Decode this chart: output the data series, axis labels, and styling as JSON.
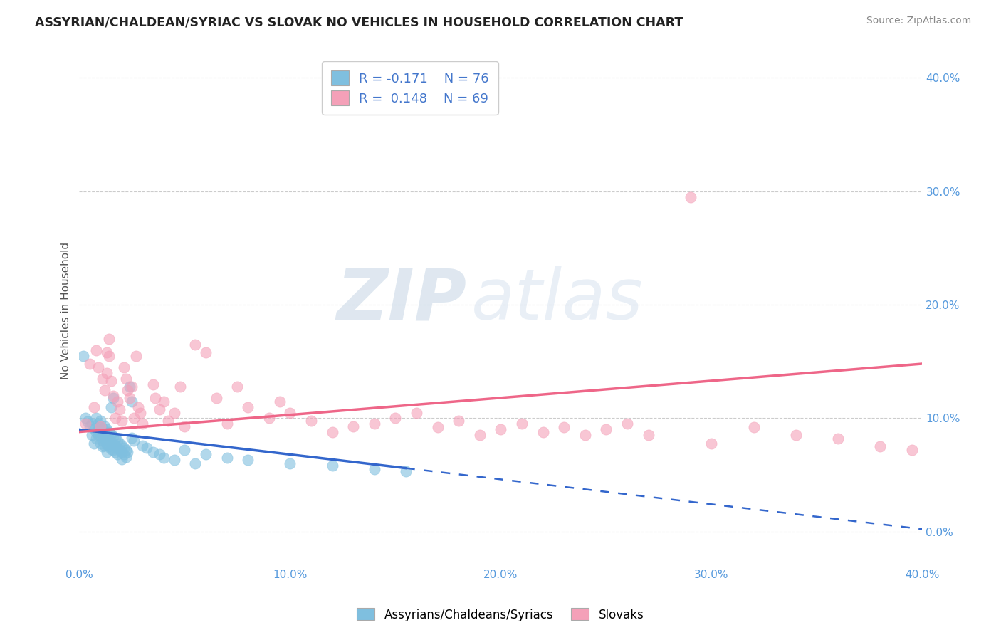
{
  "title": "ASSYRIAN/CHALDEAN/SYRIAC VS SLOVAK NO VEHICLES IN HOUSEHOLD CORRELATION CHART",
  "source": "Source: ZipAtlas.com",
  "ylabel_label": "No Vehicles in Household",
  "xmin": 0.0,
  "xmax": 0.4,
  "ymin": -0.03,
  "ymax": 0.42,
  "x_ticks": [
    0.0,
    0.1,
    0.2,
    0.3,
    0.4
  ],
  "x_tick_labels": [
    "0.0%",
    "10.0%",
    "20.0%",
    "30.0%",
    "40.0%"
  ],
  "y_ticks": [
    0.0,
    0.1,
    0.2,
    0.3,
    0.4
  ],
  "y_tick_labels": [
    "0.0%",
    "10.0%",
    "20.0%",
    "30.0%",
    "40.0%"
  ],
  "blue_color": "#7fbfdf",
  "pink_color": "#f4a0b8",
  "blue_line_color": "#3366cc",
  "pink_line_color": "#ee6688",
  "r_blue": -0.171,
  "n_blue": 76,
  "r_pink": 0.148,
  "n_pink": 69,
  "legend_label_blue": "Assyrians/Chaldeans/Syriacs",
  "legend_label_pink": "Slovaks",
  "watermark_zip": "ZIP",
  "watermark_atlas": "atlas",
  "title_color": "#333333",
  "stats_color": "#4477cc",
  "blue_trend_y0": 0.09,
  "blue_trend_y1": 0.056,
  "blue_trend_x0": 0.0,
  "blue_trend_x1": 0.155,
  "pink_trend_y0": 0.088,
  "pink_trend_y1": 0.148,
  "pink_trend_x0": 0.0,
  "pink_trend_x1": 0.4,
  "blue_scatter": [
    [
      0.002,
      0.155
    ],
    [
      0.003,
      0.1
    ],
    [
      0.004,
      0.097
    ],
    [
      0.005,
      0.093
    ],
    [
      0.006,
      0.095
    ],
    [
      0.006,
      0.085
    ],
    [
      0.007,
      0.091
    ],
    [
      0.007,
      0.078
    ],
    [
      0.008,
      0.1
    ],
    [
      0.008,
      0.088
    ],
    [
      0.008,
      0.082
    ],
    [
      0.009,
      0.095
    ],
    [
      0.009,
      0.089
    ],
    [
      0.009,
      0.085
    ],
    [
      0.01,
      0.098
    ],
    [
      0.01,
      0.092
    ],
    [
      0.01,
      0.085
    ],
    [
      0.01,
      0.078
    ],
    [
      0.011,
      0.091
    ],
    [
      0.011,
      0.085
    ],
    [
      0.011,
      0.08
    ],
    [
      0.011,
      0.075
    ],
    [
      0.012,
      0.093
    ],
    [
      0.012,
      0.087
    ],
    [
      0.012,
      0.082
    ],
    [
      0.012,
      0.076
    ],
    [
      0.013,
      0.09
    ],
    [
      0.013,
      0.083
    ],
    [
      0.013,
      0.077
    ],
    [
      0.013,
      0.07
    ],
    [
      0.014,
      0.088
    ],
    [
      0.014,
      0.081
    ],
    [
      0.014,
      0.075
    ],
    [
      0.015,
      0.11
    ],
    [
      0.015,
      0.086
    ],
    [
      0.015,
      0.079
    ],
    [
      0.015,
      0.073
    ],
    [
      0.016,
      0.118
    ],
    [
      0.016,
      0.084
    ],
    [
      0.016,
      0.077
    ],
    [
      0.016,
      0.072
    ],
    [
      0.017,
      0.082
    ],
    [
      0.017,
      0.076
    ],
    [
      0.017,
      0.07
    ],
    [
      0.018,
      0.08
    ],
    [
      0.018,
      0.074
    ],
    [
      0.018,
      0.068
    ],
    [
      0.019,
      0.078
    ],
    [
      0.019,
      0.072
    ],
    [
      0.02,
      0.076
    ],
    [
      0.02,
      0.07
    ],
    [
      0.02,
      0.064
    ],
    [
      0.021,
      0.074
    ],
    [
      0.021,
      0.068
    ],
    [
      0.022,
      0.072
    ],
    [
      0.022,
      0.066
    ],
    [
      0.023,
      0.07
    ],
    [
      0.024,
      0.128
    ],
    [
      0.025,
      0.115
    ],
    [
      0.025,
      0.083
    ],
    [
      0.026,
      0.08
    ],
    [
      0.03,
      0.076
    ],
    [
      0.032,
      0.074
    ],
    [
      0.035,
      0.07
    ],
    [
      0.038,
      0.068
    ],
    [
      0.04,
      0.065
    ],
    [
      0.045,
      0.063
    ],
    [
      0.05,
      0.072
    ],
    [
      0.055,
      0.06
    ],
    [
      0.06,
      0.068
    ],
    [
      0.07,
      0.065
    ],
    [
      0.08,
      0.063
    ],
    [
      0.1,
      0.06
    ],
    [
      0.12,
      0.058
    ],
    [
      0.14,
      0.055
    ],
    [
      0.155,
      0.053
    ]
  ],
  "pink_scatter": [
    [
      0.003,
      0.095
    ],
    [
      0.005,
      0.148
    ],
    [
      0.007,
      0.11
    ],
    [
      0.008,
      0.16
    ],
    [
      0.009,
      0.145
    ],
    [
      0.01,
      0.093
    ],
    [
      0.011,
      0.135
    ],
    [
      0.012,
      0.125
    ],
    [
      0.013,
      0.158
    ],
    [
      0.013,
      0.14
    ],
    [
      0.014,
      0.17
    ],
    [
      0.014,
      0.155
    ],
    [
      0.015,
      0.133
    ],
    [
      0.016,
      0.12
    ],
    [
      0.017,
      0.1
    ],
    [
      0.018,
      0.115
    ],
    [
      0.019,
      0.108
    ],
    [
      0.02,
      0.098
    ],
    [
      0.021,
      0.145
    ],
    [
      0.022,
      0.135
    ],
    [
      0.023,
      0.125
    ],
    [
      0.024,
      0.118
    ],
    [
      0.025,
      0.128
    ],
    [
      0.026,
      0.1
    ],
    [
      0.027,
      0.155
    ],
    [
      0.028,
      0.11
    ],
    [
      0.029,
      0.105
    ],
    [
      0.03,
      0.095
    ],
    [
      0.035,
      0.13
    ],
    [
      0.036,
      0.118
    ],
    [
      0.038,
      0.108
    ],
    [
      0.04,
      0.115
    ],
    [
      0.042,
      0.098
    ],
    [
      0.045,
      0.105
    ],
    [
      0.048,
      0.128
    ],
    [
      0.05,
      0.093
    ],
    [
      0.055,
      0.165
    ],
    [
      0.06,
      0.158
    ],
    [
      0.065,
      0.118
    ],
    [
      0.07,
      0.095
    ],
    [
      0.075,
      0.128
    ],
    [
      0.08,
      0.11
    ],
    [
      0.09,
      0.1
    ],
    [
      0.095,
      0.115
    ],
    [
      0.1,
      0.105
    ],
    [
      0.11,
      0.098
    ],
    [
      0.12,
      0.088
    ],
    [
      0.13,
      0.093
    ],
    [
      0.14,
      0.095
    ],
    [
      0.15,
      0.1
    ],
    [
      0.16,
      0.105
    ],
    [
      0.17,
      0.092
    ],
    [
      0.18,
      0.098
    ],
    [
      0.19,
      0.085
    ],
    [
      0.2,
      0.09
    ],
    [
      0.21,
      0.095
    ],
    [
      0.22,
      0.088
    ],
    [
      0.23,
      0.092
    ],
    [
      0.24,
      0.085
    ],
    [
      0.25,
      0.09
    ],
    [
      0.26,
      0.095
    ],
    [
      0.27,
      0.085
    ],
    [
      0.29,
      0.295
    ],
    [
      0.3,
      0.078
    ],
    [
      0.32,
      0.092
    ],
    [
      0.34,
      0.085
    ],
    [
      0.36,
      0.082
    ],
    [
      0.38,
      0.075
    ],
    [
      0.395,
      0.072
    ]
  ]
}
